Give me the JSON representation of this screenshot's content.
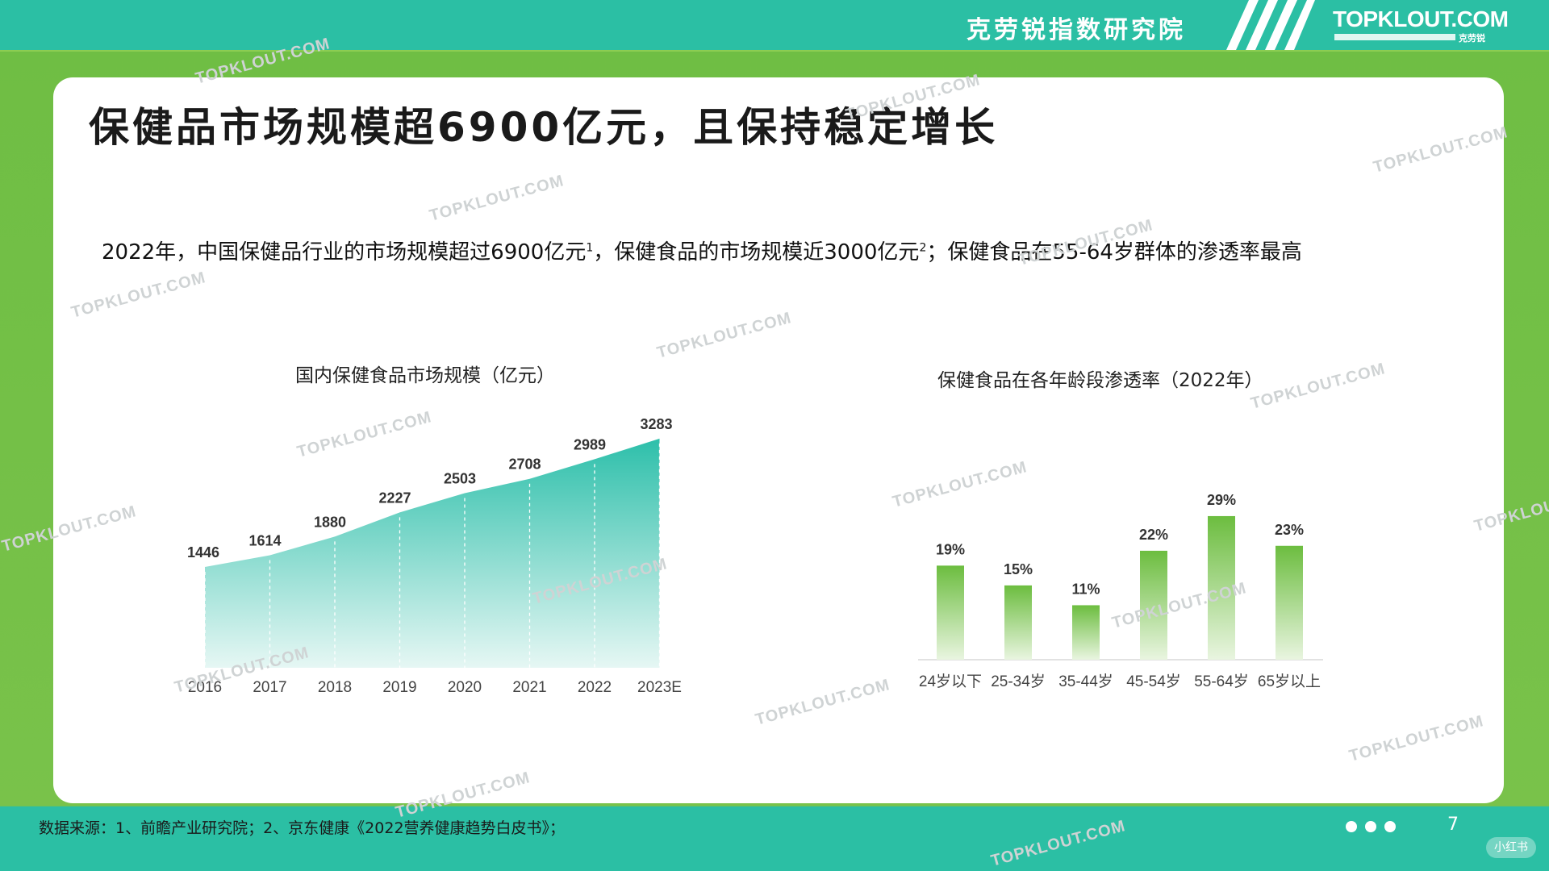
{
  "header": {
    "org_name": "克劳锐指数研究院",
    "logo_text": "TOPKLOUT.COM",
    "logo_sub": "克劳锐"
  },
  "page": {
    "title": "保健品市场规模超6900亿元，且保持稳定增长",
    "summary_part1": "2022年，中国保健品行业的市场规模超过6900亿元",
    "summary_sup1": "1",
    "summary_part2": "，保健食品的市场规模近3000亿元",
    "summary_sup2": "2",
    "summary_part3": "；保健食品在55-64岁群体的渗透率最高"
  },
  "watermark": "TOPKLOUT.COM",
  "footer": {
    "source": "数据来源：1、前瞻产业研究院；2、京东健康《2022营养健康趋势白皮书》；",
    "page_number": "7",
    "corner_badge": "小红书"
  },
  "colors": {
    "teal": "#2bbfa4",
    "green": "#76c043",
    "area_top": "#2dbfaa",
    "area_bottom": "#e6f7f4",
    "bar_top": "#6cbd3f",
    "bar_bottom": "#e9f5e0"
  },
  "chart_data": [
    {
      "type": "area",
      "title": "国内保健食品市场规模（亿元）",
      "categories": [
        "2016",
        "2017",
        "2018",
        "2019",
        "2020",
        "2021",
        "2022",
        "2023E"
      ],
      "values": [
        1446,
        1614,
        1880,
        2227,
        2503,
        2708,
        2989,
        3283
      ],
      "xlabel": "",
      "ylabel": "",
      "grid": false
    },
    {
      "type": "bar",
      "title": "保健食品在各年龄段渗透率（2022年）",
      "categories": [
        "24岁以下",
        "25-34岁",
        "35-44岁",
        "45-54岁",
        "55-64岁",
        "65岁以上"
      ],
      "values": [
        19,
        15,
        11,
        22,
        29,
        23
      ],
      "value_labels": [
        "19%",
        "15%",
        "11%",
        "22%",
        "29%",
        "23%"
      ],
      "xlabel": "",
      "ylabel": "",
      "grid": false
    }
  ]
}
